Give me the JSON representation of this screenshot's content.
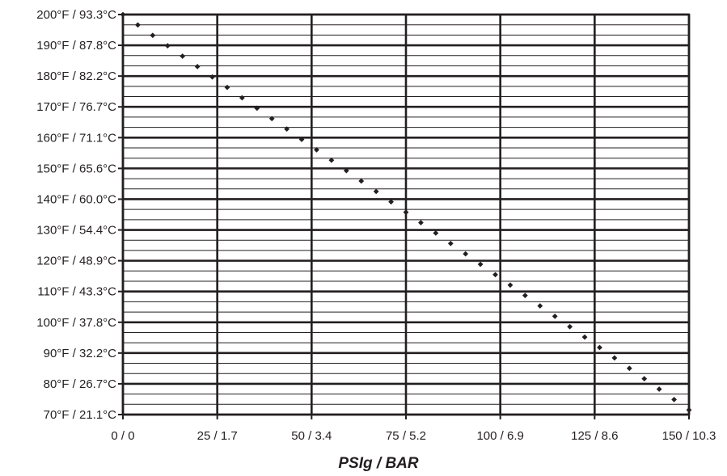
{
  "chart_data": {
    "type": "line",
    "xlabel": "PSIg / BAR",
    "ylabel": "",
    "xlim": [
      0,
      150
    ],
    "ylim": [
      70,
      200
    ],
    "x_ticks": [
      {
        "value": 0,
        "label": "0 / 0"
      },
      {
        "value": 25,
        "label": "25 / 1.7"
      },
      {
        "value": 50,
        "label": "50 / 3.4"
      },
      {
        "value": 75,
        "label": "75 / 5.2"
      },
      {
        "value": 100,
        "label": "100 / 6.9"
      },
      {
        "value": 125,
        "label": "125 / 8.6"
      },
      {
        "value": 150,
        "label": "150 / 10.3"
      }
    ],
    "y_ticks": [
      {
        "value": 200,
        "label": "200°F / 93.3°C"
      },
      {
        "value": 190,
        "label": "190°F / 87.8°C"
      },
      {
        "value": 180,
        "label": "180°F / 82.2°C"
      },
      {
        "value": 170,
        "label": "170°F / 76.7°C"
      },
      {
        "value": 160,
        "label": "160°F / 71.1°C"
      },
      {
        "value": 150,
        "label": "150°F / 65.6°C"
      },
      {
        "value": 140,
        "label": "140°F / 60.0°C"
      },
      {
        "value": 130,
        "label": "130°F / 54.4°C"
      },
      {
        "value": 120,
        "label": "120°F / 48.9°C"
      },
      {
        "value": 110,
        "label": "110°F / 43.3°C"
      },
      {
        "value": 100,
        "label": "100°F / 37.8°C"
      },
      {
        "value": 90,
        "label": "90°F / 32.2°C"
      },
      {
        "value": 80,
        "label": "80°F / 26.7°C"
      },
      {
        "value": 70,
        "label": "70°F / 21.1°C"
      }
    ],
    "grid": true,
    "line_style": "dotted",
    "series": [
      {
        "points": [
          [
            0,
            200
          ],
          [
            150,
            71.5
          ]
        ]
      }
    ],
    "colors": {
      "ink": "#231f20",
      "background": "#ffffff"
    }
  }
}
